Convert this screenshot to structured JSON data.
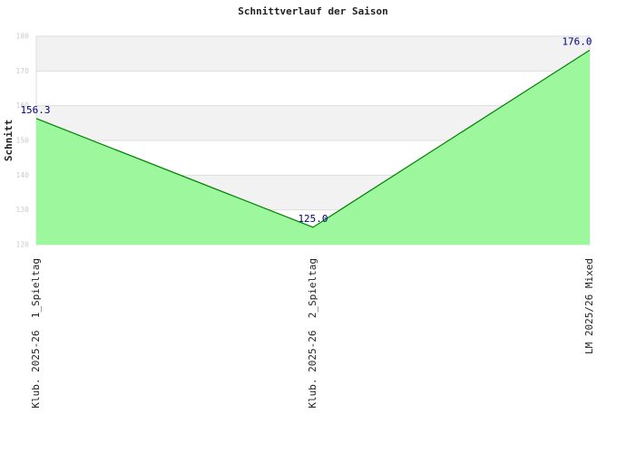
{
  "chart_data": {
    "type": "area",
    "title": "Schnittverlauf der Saison",
    "y_label": "Schnitt",
    "categories": [
      "Klub. 2025-26  1_Spieltag",
      "Klub. 2025-26  2_Spieltag",
      "LM 2025/26 Mixed"
    ],
    "values": [
      156.3,
      125.0,
      176.0
    ],
    "value_labels": [
      "156.3",
      "125.0",
      "176.0"
    ],
    "color": "#008000",
    "fill": "#98f898",
    "ylim": [
      120,
      180
    ],
    "yticks": [
      120,
      130,
      140,
      150,
      160,
      170,
      180
    ],
    "grid": true
  }
}
